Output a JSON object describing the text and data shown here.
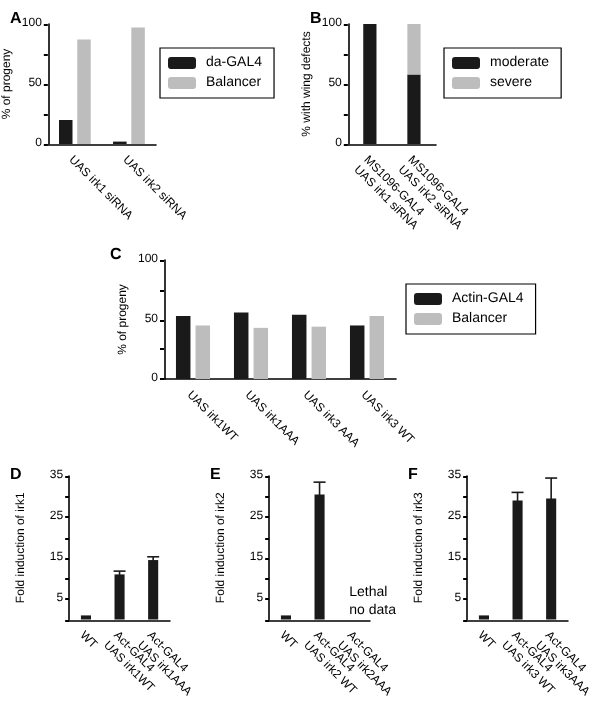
{
  "chart_data": [
    {
      "type": "bar",
      "title": "A",
      "ylabel": "% of progeny",
      "categories": [
        "UAS irk1 siRNA",
        "UAS irk2 siRNA"
      ],
      "series": [
        {
          "name": "da-GAL4",
          "color": "#1a1a1a",
          "values": [
            20,
            2
          ]
        },
        {
          "name": "Balancer",
          "color": "#bdbdbd",
          "values": [
            87,
            97
          ]
        }
      ],
      "ylim": [
        0,
        100
      ],
      "yticks": [
        0,
        {
          "value": 25,
          "label": null
        },
        50,
        {
          "value": 75,
          "label": null
        },
        100
      ],
      "legend": "right",
      "grid": false
    },
    {
      "type": "bar",
      "title": "B",
      "ylabel": "% with wing defects",
      "categories": [
        "MS1096-GAL4\nUAS irk1 siRNA",
        "MS1096-GAL4\nUAS irk2 siRNA"
      ],
      "stacked": true,
      "series": [
        {
          "name": "moderate",
          "color": "#1a1a1a",
          "values": [
            100,
            58
          ]
        },
        {
          "name": "severe",
          "color": "#bdbdbd",
          "values": [
            0,
            42
          ]
        }
      ],
      "ylim": [
        0,
        100
      ],
      "yticks": [
        0,
        {
          "value": 25,
          "label": null
        },
        50,
        {
          "value": 75,
          "label": null
        },
        100
      ],
      "legend": "right",
      "grid": false
    },
    {
      "type": "bar",
      "title": "C",
      "ylabel": "% of progeny",
      "categories": [
        "UAS irk1WT",
        "UAS irk1AAA",
        "UAS irk3 AAA",
        "UAS irk3 WT"
      ],
      "series": [
        {
          "name": "Actin-GAL4",
          "color": "#1a1a1a",
          "values": [
            53,
            56,
            54,
            45
          ]
        },
        {
          "name": "Balancer",
          "color": "#bdbdbd",
          "values": [
            45,
            43,
            44,
            53
          ]
        }
      ],
      "ylim": [
        0,
        100
      ],
      "yticks": [
        0,
        {
          "value": 25,
          "label": null
        },
        50,
        {
          "value": 75,
          "label": null
        },
        100
      ],
      "legend": "right",
      "grid": false
    },
    {
      "type": "bar",
      "title": "D",
      "ylabel": "Fold induction of irk1",
      "categories": [
        "WT",
        "Act-GAL4\nUAS irk1WT",
        "Act-GAL4\nUAS irk1AAA"
      ],
      "series": [
        {
          "color": "#1a1a1a",
          "values": [
            1,
            11,
            14.5
          ],
          "errors": [
            null,
            0.8,
            0.8
          ]
        }
      ],
      "ylim": [
        0,
        35
      ],
      "yticks": [
        {
          "value": 0,
          "label": null
        },
        5,
        {
          "value": 10,
          "label": null
        },
        15,
        {
          "value": 20,
          "label": null
        },
        25,
        {
          "value": 30,
          "label": null
        },
        35
      ],
      "legend": false,
      "grid": false
    },
    {
      "type": "bar",
      "title": "E",
      "ylabel": "Fold induction of irk2",
      "categories": [
        "WT",
        "Act-GAL4\nUAS irk2 WT",
        "Act-GAL4\nUAS irk2AAA"
      ],
      "series": [
        {
          "color": "#1a1a1a",
          "values": [
            1,
            30.5,
            null
          ],
          "errors": [
            null,
            3,
            null
          ]
        }
      ],
      "ylim": [
        0,
        35
      ],
      "yticks": [
        {
          "value": 0,
          "label": null
        },
        5,
        {
          "value": 10,
          "label": null
        },
        15,
        {
          "value": 20,
          "label": null
        },
        25,
        {
          "value": 30,
          "label": null
        },
        35
      ],
      "legend": false,
      "grid": false,
      "annotations": [
        "Lethal\nno data"
      ]
    },
    {
      "type": "bar",
      "title": "F",
      "ylabel": "Fold induction of irk3",
      "categories": [
        "WT",
        "Act-GAL4\nUAS irk3 WT",
        "Act-GAL4\nUAS irk3AAA"
      ],
      "series": [
        {
          "color": "#1a1a1a",
          "values": [
            1,
            29,
            29.5
          ],
          "errors": [
            null,
            2,
            5
          ]
        }
      ],
      "ylim": [
        0,
        35
      ],
      "yticks": [
        {
          "value": 0,
          "label": null
        },
        5,
        {
          "value": 10,
          "label": null
        },
        15,
        {
          "value": 20,
          "label": null
        },
        25,
        {
          "value": 30,
          "label": null
        },
        35
      ],
      "legend": false,
      "grid": false
    }
  ]
}
